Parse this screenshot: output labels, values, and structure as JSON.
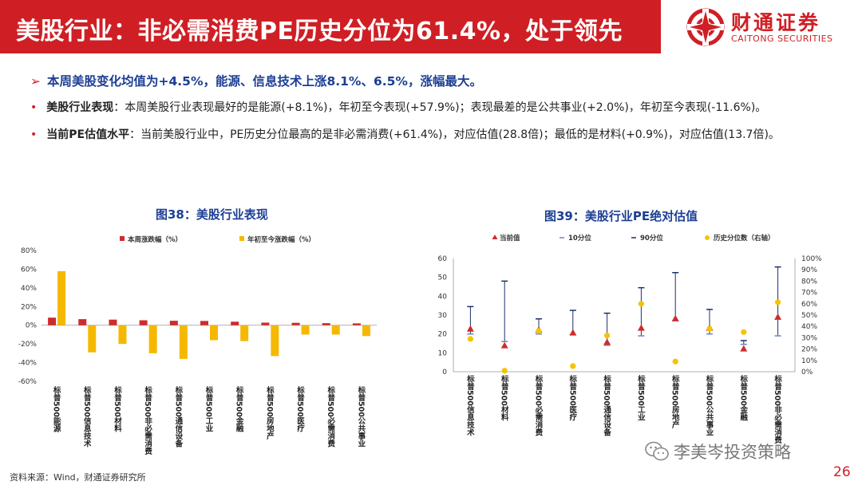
{
  "header": {
    "title": "美股行业：非必需消费PE历史分位为61.4%，处于领先",
    "logo_cn": "财通证券",
    "logo_en": "CAITONG SECURITIES",
    "bg_color": "#cf1f25"
  },
  "summary": {
    "headline": "本周美股变化均值为+4.5%，能源、信息技术上涨8.1%、6.5%，涨幅最大。",
    "bullets": [
      {
        "label": "美股行业表现",
        "text": "：本周美股行业表现最好的是能源(+8.1%)，年初至今表现(+57.9%)；表现最差的是公共事业(+2.0%)，年初至今表现(-11.6%)。"
      },
      {
        "label": "当前PE估值水平",
        "text": "：当前美股行业中，PE历史分位最高的是非必需消费(+61.4%)，对应估值(28.8倍)；最低的是材料(+0.9%)，对应估值(13.7倍)。"
      }
    ]
  },
  "chart_data": [
    {
      "type": "bar",
      "title": "图38：美股行业表现",
      "categories": [
        "标普500能源",
        "标普500信息技术",
        "标普500材料",
        "标普500非必需消费",
        "标普500通信设备",
        "标普500工业",
        "标普500金融",
        "标普500房地产",
        "标普500医疗",
        "标普500必需消费",
        "标普500公共事业"
      ],
      "series": [
        {
          "name": "本周涨跌幅（%）",
          "color": "#cf2b2b",
          "values": [
            8.1,
            6.5,
            6.0,
            5.3,
            4.8,
            4.6,
            3.8,
            2.8,
            2.6,
            2.2,
            2.0
          ]
        },
        {
          "name": "年初至今涨跌幅（%）",
          "color": "#f5b800",
          "values": [
            57.9,
            -29,
            -20,
            -30,
            -36,
            -16,
            -17,
            -33,
            -10,
            -10,
            -11.6
          ]
        }
      ],
      "ylim": [
        -60,
        80
      ],
      "yticks": [
        "80%",
        "60%",
        "40%",
        "20%",
        "0%",
        "-20%",
        "-40%",
        "-60%"
      ],
      "legend": "top"
    },
    {
      "type": "scatter",
      "title": "图39：美股行业PE绝对估值",
      "categories": [
        "标普500信息技术",
        "标普500材料",
        "标普500必需消费",
        "标普500医疗",
        "标普500通信设备",
        "标普500工业",
        "标普500房地产",
        "标普500公共事业",
        "标普500金融",
        "标普500非必需消费"
      ],
      "series": [
        {
          "name": "当前值",
          "color": "#cf2b2b",
          "marker": "triangle",
          "values": [
            22.5,
            13.7,
            22.0,
            20.5,
            15.5,
            23.0,
            28.0,
            23.0,
            12.0,
            28.8
          ]
        },
        {
          "name": "10分位",
          "color": "#6b86b8",
          "marker": "dash",
          "values": [
            20.0,
            16.0,
            20.0,
            19.5,
            14.0,
            19.0,
            27.0,
            20.0,
            14.5,
            19.0
          ]
        },
        {
          "name": "90分位",
          "color": "#1c2f6e",
          "marker": "dash",
          "values": [
            34.5,
            48.0,
            28.0,
            32.5,
            31.0,
            44.5,
            52.5,
            33.0,
            16.5,
            55.5
          ]
        },
        {
          "name": "历史分位数（右轴）",
          "color": "#f5c400",
          "marker": "circle",
          "axis": "right",
          "values": [
            0.29,
            0.009,
            0.36,
            0.05,
            0.32,
            0.6,
            0.09,
            0.38,
            0.35,
            0.614
          ]
        }
      ],
      "ylim": [
        0,
        60
      ],
      "yticks": [
        "60",
        "50",
        "40",
        "30",
        "20",
        "10",
        "0"
      ],
      "y2lim": [
        0,
        1
      ],
      "y2ticks": [
        "100%",
        "90%",
        "80%",
        "70%",
        "60%",
        "50%",
        "40%",
        "30%",
        "20%",
        "10%",
        "0%"
      ],
      "legend": "top"
    }
  ],
  "footer": {
    "source": "资料来源：Wind，财通证券研究所",
    "wechat": "李美岑投资策略",
    "page": "26"
  }
}
